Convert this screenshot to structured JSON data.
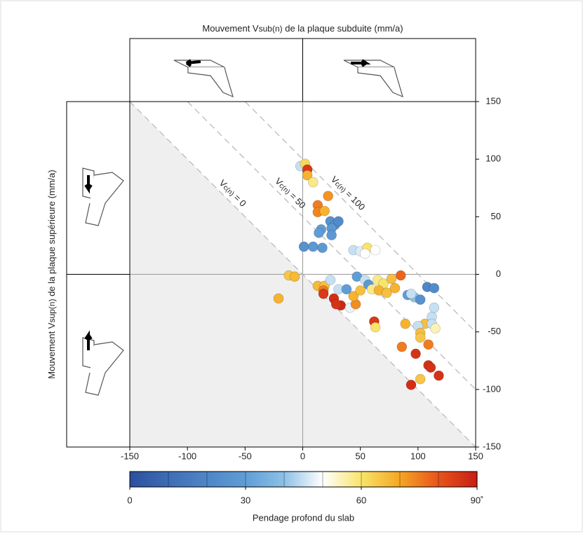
{
  "chart_data": {
    "type": "scatter",
    "title_parts": [
      "Mouvement V",
      "sub(n)",
      " de la plaque subduite (mm/a)"
    ],
    "ylabel_parts": [
      "Mouvement V",
      "sup(n)",
      " de la plaque supérieure (mm/a)"
    ],
    "xlim": [
      -150,
      150
    ],
    "ylim": [
      -150,
      150
    ],
    "xticks": [
      -150,
      -100,
      -50,
      0,
      50,
      100,
      150
    ],
    "yticks": [
      -150,
      -100,
      -50,
      0,
      50,
      100,
      150
    ],
    "vc_lines": [
      {
        "value": 0,
        "label_parts": [
          "V",
          "c(n)",
          " = 0"
        ]
      },
      {
        "value": 50,
        "label_parts": [
          "V",
          "c(n)",
          " = 50"
        ]
      },
      {
        "value": 100,
        "label_parts": [
          "V",
          "c(n)",
          " = 100"
        ]
      }
    ],
    "series": [
      {
        "x": [
          -2,
          2,
          4,
          4,
          9,
          22,
          13,
          13,
          19,
          24,
          28,
          31,
          25,
          16,
          14,
          25,
          1,
          9,
          17,
          44,
          50,
          56,
          54,
          63,
          -12,
          -7,
          -21,
          13,
          19,
          18,
          18,
          27,
          33,
          29,
          24,
          31,
          38,
          41,
          46,
          44,
          47,
          54,
          57,
          50,
          60,
          65,
          70,
          66,
          73,
          80,
          77,
          85,
          91,
          97,
          102,
          94,
          108,
          114,
          62,
          63,
          106,
          89,
          100,
          112,
          112,
          102,
          102,
          109,
          86,
          98,
          109,
          111,
          118,
          102,
          94,
          114,
          115
        ],
        "values": [
          94,
          96,
          91,
          86,
          80,
          68,
          60,
          54,
          55,
          46,
          43,
          46,
          40,
          39,
          36,
          34,
          24,
          24,
          23,
          21,
          20,
          23,
          18,
          21,
          -1,
          -2,
          -21,
          -10,
          -10,
          -14,
          -17,
          -21,
          -27,
          -26,
          -5,
          -13,
          -13,
          -29,
          -26,
          -19,
          -2,
          -5,
          -9,
          -14,
          -13,
          -5,
          -8,
          -14,
          -16,
          -12,
          -4,
          -1,
          -18,
          -20,
          -22,
          -17,
          -11,
          -12,
          -41,
          -46,
          -43,
          -43,
          -45,
          -37,
          -43,
          -51,
          -55,
          -61,
          -63,
          -69,
          -79,
          -81,
          -88,
          -91,
          -96,
          -29,
          -47
        ],
        "dip": [
          45,
          62,
          85,
          68,
          58,
          72,
          75,
          74,
          68,
          25,
          25,
          22,
          28,
          30,
          30,
          28,
          25,
          28,
          28,
          45,
          47,
          60,
          50,
          50,
          65,
          67,
          68,
          67,
          66,
          75,
          85,
          87,
          88,
          86,
          45,
          45,
          30,
          48,
          73,
          68,
          30,
          45,
          28,
          66,
          58,
          58,
          60,
          68,
          66,
          68,
          66,
          78,
          30,
          40,
          25,
          45,
          20,
          22,
          85,
          60,
          66,
          68,
          45,
          45,
          45,
          66,
          65,
          75,
          75,
          86,
          86,
          86,
          86,
          65,
          87,
          45,
          55
        ]
      }
    ],
    "colorbar": {
      "lim": [
        0,
        90
      ],
      "ticks": [
        0,
        30,
        60,
        {
          "value": 90,
          "label": "90˚"
        }
      ],
      "label": "Pendage profond du slab",
      "colormap": [
        "#2c4f9e",
        "#3e6db4",
        "#4f86c6",
        "#5f9dd6",
        "#8dc1e6",
        "#ffffff",
        "#f8e46a",
        "#f5a623",
        "#e8531c",
        "#c81e14"
      ]
    }
  }
}
